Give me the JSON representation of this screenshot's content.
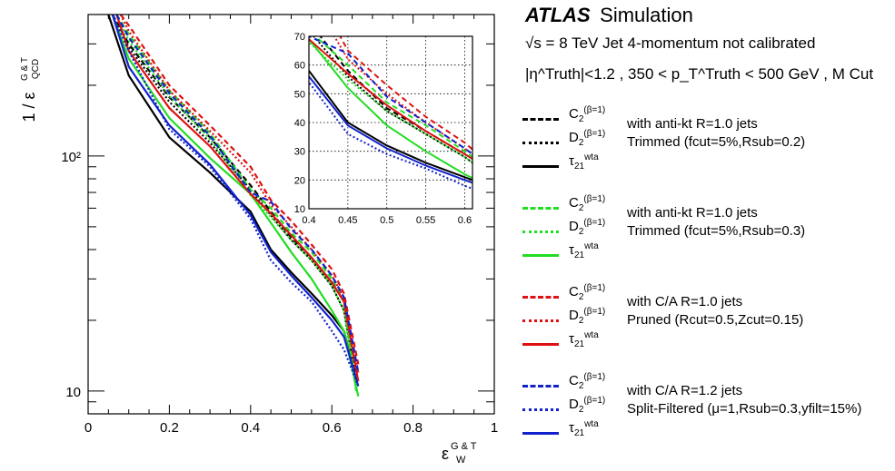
{
  "header": {
    "experiment": "ATLAS",
    "label": "Simulation",
    "energy_line": "√s = 8 TeV   Jet 4-momentum not calibrated",
    "cut_line": "|η^Truth|<1.2 , 350 < p_T^Truth < 500 GeV , M Cut"
  },
  "axes": {
    "ylabel": "1 / ε_QCD^{G & T}",
    "xlabel": "ε_W^{G & T}",
    "xticks": [
      "0",
      "0.2",
      "0.4",
      "0.6",
      "0.8",
      "1"
    ],
    "yticks": [
      "10",
      "10²"
    ]
  },
  "inset": {
    "xticks": [
      "0.4",
      "0.45",
      "0.5",
      "0.55",
      "0.6"
    ],
    "yticks": [
      "10",
      "20",
      "30",
      "40",
      "50",
      "60",
      "70"
    ]
  },
  "legend": {
    "variables": [
      "C2(β=1)",
      "D2(β=1)",
      "τ21wta"
    ],
    "groups": [
      {
        "color": "#000000",
        "line1": "with anti-kt R=1.0 jets",
        "line2": "Trimmed (fcut=5%,Rsub=0.2)"
      },
      {
        "color": "#22dd22",
        "line1": "with anti-kt R=1.0 jets",
        "line2": "Trimmed (fcut=5%,Rsub=0.3)"
      },
      {
        "color": "#dd1111",
        "line1": "with C/A R=1.0 jets",
        "line2": "Pruned (Rcut=0.5,Zcut=0.15)"
      },
      {
        "color": "#1122cc",
        "line1": "with C/A R=1.2 jets",
        "line2": "Split-Filtered (μ=1,Rsub=0.3,yfilt=15%)"
      }
    ]
  },
  "chart_data": {
    "type": "line",
    "title": "",
    "xlabel": "ε_W^{G & T}",
    "ylabel": "1 / ε_QCD^{G & T}",
    "xlim": [
      0,
      1
    ],
    "ylim": [
      8,
      400
    ],
    "ylog": true,
    "grid": false,
    "legend_position": "right",
    "inset": {
      "xlim": [
        0.4,
        0.61
      ],
      "ylim": [
        10,
        70
      ],
      "grid": true
    },
    "series": [
      {
        "name": "C2(β=1) anti-kt R=1.0 Trimmed Rsub=0.2",
        "color": "#000000",
        "dash": "dashed",
        "x": [
          0.06,
          0.1,
          0.2,
          0.3,
          0.4,
          0.45,
          0.5,
          0.55,
          0.6,
          0.63,
          0.66
        ],
        "y": [
          400,
          300,
          178,
          120,
          75,
          58,
          45,
          37,
          29,
          24,
          12
        ]
      },
      {
        "name": "D2(β=1) anti-kt R=1.0 Trimmed Rsub=0.2",
        "color": "#000000",
        "dash": "dotted",
        "x": [
          0.06,
          0.1,
          0.2,
          0.3,
          0.4,
          0.45,
          0.5,
          0.55,
          0.6,
          0.63,
          0.66
        ],
        "y": [
          400,
          290,
          170,
          114,
          72,
          56,
          44,
          36,
          28,
          22,
          11
        ]
      },
      {
        "name": "τ21wta anti-kt R=1.0 Trimmed Rsub=0.2",
        "color": "#000000",
        "dash": "solid",
        "x": [
          0.05,
          0.1,
          0.2,
          0.3,
          0.4,
          0.45,
          0.5,
          0.55,
          0.6,
          0.63,
          0.66
        ],
        "y": [
          400,
          220,
          120,
          85,
          58,
          40,
          32,
          26,
          21,
          18,
          11
        ]
      },
      {
        "name": "C2(β=1) anti-kt R=1.0 Trimmed Rsub=0.3",
        "color": "#22dd22",
        "dash": "dashed",
        "x": [
          0.07,
          0.1,
          0.2,
          0.3,
          0.4,
          0.45,
          0.5,
          0.55,
          0.6,
          0.63,
          0.66
        ],
        "y": [
          400,
          330,
          190,
          125,
          72,
          60,
          47,
          39,
          30,
          24,
          10
        ]
      },
      {
        "name": "D2(β=1) anti-kt R=1.0 Trimmed Rsub=0.3",
        "color": "#22dd22",
        "dash": "dotted",
        "x": [
          0.07,
          0.1,
          0.2,
          0.3,
          0.4,
          0.45,
          0.5,
          0.55,
          0.6,
          0.63,
          0.66
        ],
        "y": [
          400,
          310,
          180,
          118,
          68,
          55,
          44,
          36,
          28,
          22,
          10
        ]
      },
      {
        "name": "τ21wta anti-kt R=1.0 Trimmed Rsub=0.3",
        "color": "#22dd22",
        "dash": "solid",
        "x": [
          0.06,
          0.1,
          0.2,
          0.3,
          0.4,
          0.45,
          0.5,
          0.55,
          0.6,
          0.63,
          0.665
        ],
        "y": [
          400,
          260,
          145,
          98,
          69,
          52,
          39,
          30,
          22,
          18,
          9.5
        ]
      },
      {
        "name": "C2(β=1) C/A R=1.0 Pruned",
        "color": "#dd1111",
        "dash": "dashed",
        "x": [
          0.08,
          0.1,
          0.2,
          0.3,
          0.4,
          0.45,
          0.5,
          0.55,
          0.6,
          0.63,
          0.665
        ],
        "y": [
          400,
          360,
          200,
          135,
          90,
          65,
          53,
          42,
          33,
          26,
          13
        ]
      },
      {
        "name": "D2(β=1) C/A R=1.0 Pruned",
        "color": "#dd1111",
        "dash": "dotted",
        "x": [
          0.08,
          0.1,
          0.2,
          0.3,
          0.4,
          0.45,
          0.5,
          0.55,
          0.6,
          0.63,
          0.665
        ],
        "y": [
          400,
          340,
          190,
          128,
          85,
          62,
          50,
          40,
          31,
          25,
          12
        ]
      },
      {
        "name": "τ21wta C/A R=1.0 Pruned",
        "color": "#dd1111",
        "dash": "solid",
        "x": [
          0.07,
          0.1,
          0.2,
          0.3,
          0.4,
          0.45,
          0.5,
          0.55,
          0.6,
          0.63,
          0.665
        ],
        "y": [
          400,
          280,
          160,
          110,
          69,
          57,
          46,
          37,
          29,
          24,
          11
        ]
      },
      {
        "name": "C2(β=1) C/A R=1.2 Split-Filtered",
        "color": "#1122cc",
        "dash": "dashed",
        "x": [
          0.07,
          0.1,
          0.2,
          0.3,
          0.4,
          0.45,
          0.5,
          0.55,
          0.6,
          0.63,
          0.665
        ],
        "y": [
          400,
          320,
          185,
          122,
          70,
          64,
          49,
          40,
          31,
          25,
          12
        ]
      },
      {
        "name": "D2(β=1) C/A R=1.2 Split-Filtered",
        "color": "#1122cc",
        "dash": "dotted",
        "x": [
          0.06,
          0.1,
          0.2,
          0.3,
          0.4,
          0.45,
          0.5,
          0.55,
          0.6,
          0.63,
          0.665
        ],
        "y": [
          400,
          280,
          130,
          90,
          54,
          36,
          29,
          24,
          18,
          15,
          10.5
        ]
      },
      {
        "name": "τ21wta C/A R=1.2 Split-Filtered",
        "color": "#1122cc",
        "dash": "solid",
        "x": [
          0.06,
          0.1,
          0.2,
          0.3,
          0.4,
          0.45,
          0.5,
          0.55,
          0.6,
          0.63,
          0.665
        ],
        "y": [
          400,
          240,
          135,
          92,
          56,
          39,
          31,
          25,
          20,
          17,
          10.5
        ]
      }
    ]
  }
}
